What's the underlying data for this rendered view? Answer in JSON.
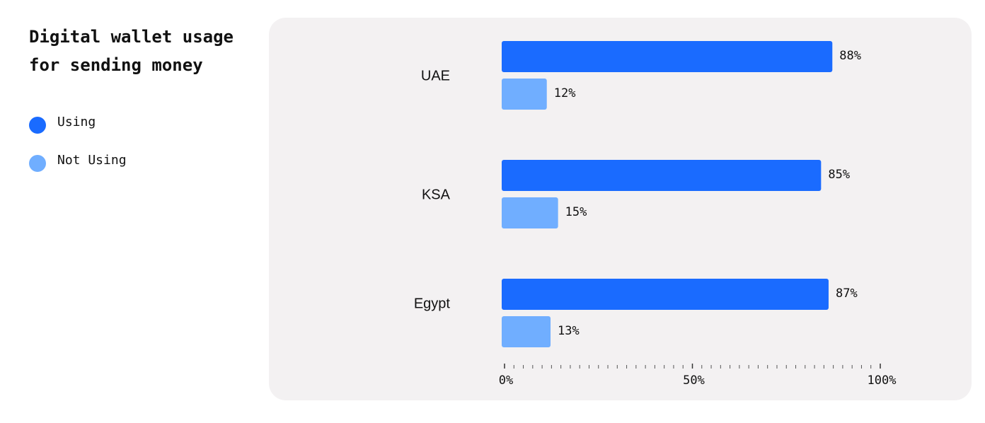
{
  "chart_data": {
    "type": "bar",
    "orientation": "horizontal",
    "title": "Digital wallet usage for sending money",
    "categories": [
      "UAE",
      "KSA",
      "Egypt"
    ],
    "series": [
      {
        "name": "Using",
        "color": "#1a6bff",
        "values": [
          88,
          85,
          87
        ],
        "value_labels": [
          "88%",
          "85%",
          "87%"
        ]
      },
      {
        "name": "Not Using",
        "color": "#70aeff",
        "values": [
          12,
          15,
          13
        ],
        "value_labels": [
          "12%",
          "15%",
          "13%"
        ]
      }
    ],
    "xlim": [
      0,
      100
    ],
    "xticks": [
      {
        "value": 0,
        "label": "0%"
      },
      {
        "value": 50,
        "label": "50%"
      },
      {
        "value": 100,
        "label": "100%"
      }
    ],
    "xminorticks": [
      0,
      2.5,
      5,
      7.5,
      10,
      12.5,
      15,
      17.5,
      20,
      22.5,
      25,
      27.5,
      30,
      32.5,
      35,
      37.5,
      40,
      42.5,
      45,
      47.5,
      50,
      52.5,
      55,
      57.5,
      60,
      62.5,
      65,
      67.5,
      70,
      72.5,
      75,
      77.5,
      80,
      82.5,
      85,
      87.5,
      90,
      92.5,
      95,
      97.5,
      100
    ],
    "legend": "left"
  }
}
